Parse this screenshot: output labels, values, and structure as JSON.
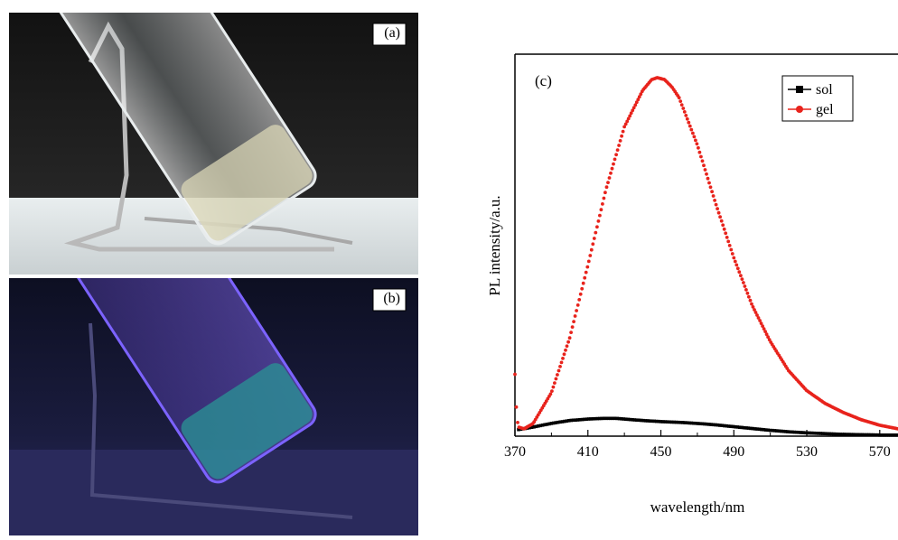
{
  "panels": {
    "a": {
      "label": "(a)"
    },
    "b": {
      "label": "(b)"
    }
  },
  "chart_data": {
    "type": "scatter",
    "panel_label": "(c)",
    "xlabel": "wavelength/nm",
    "ylabel": "PL intensity/a.u.",
    "xlim": [
      370,
      580
    ],
    "ylim": [
      0,
      1
    ],
    "x_ticks": [
      370,
      410,
      450,
      490,
      530,
      570
    ],
    "x_tick_labels": [
      "370",
      "410",
      "450",
      "490",
      "530",
      "570"
    ],
    "y_ticks_shown": false,
    "legend_position": "top-right",
    "series": [
      {
        "name": "sol",
        "color": "#000000",
        "marker": "square",
        "x": [
          372,
          380,
          390,
          400,
          410,
          420,
          425,
          430,
          440,
          450,
          460,
          470,
          480,
          490,
          500,
          510,
          520,
          530,
          540,
          550,
          560,
          570,
          580
        ],
        "y": [
          0.018,
          0.025,
          0.035,
          0.043,
          0.047,
          0.049,
          0.049,
          0.047,
          0.043,
          0.04,
          0.038,
          0.035,
          0.031,
          0.026,
          0.021,
          0.016,
          0.012,
          0.009,
          0.007,
          0.005,
          0.004,
          0.003,
          0.003
        ]
      },
      {
        "name": "gel",
        "color": "#e8231c",
        "marker": "circle",
        "x": [
          370,
          371,
          372,
          375,
          380,
          390,
          400,
          410,
          420,
          430,
          440,
          445,
          448,
          452,
          456,
          460,
          470,
          480,
          490,
          500,
          510,
          520,
          530,
          540,
          550,
          560,
          570,
          575,
          580
        ],
        "y": [
          0.17,
          0.05,
          0.025,
          0.02,
          0.035,
          0.12,
          0.27,
          0.47,
          0.68,
          0.85,
          0.95,
          0.98,
          0.985,
          0.98,
          0.96,
          0.93,
          0.8,
          0.64,
          0.49,
          0.36,
          0.26,
          0.18,
          0.125,
          0.09,
          0.065,
          0.045,
          0.03,
          0.025,
          0.02
        ]
      }
    ]
  }
}
